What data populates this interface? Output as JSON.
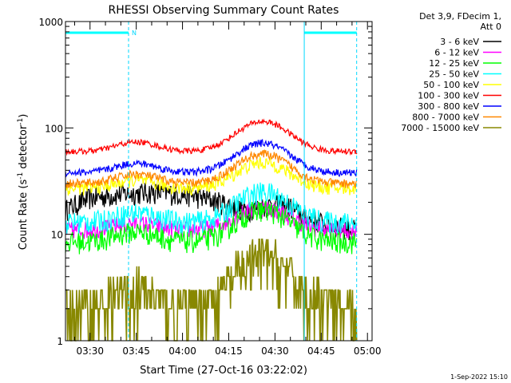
{
  "chart_data": {
    "type": "line",
    "title": "RHESSI Observing Summary Count Rates",
    "xlabel": "Start Time (27-Oct-16 03:22:02)",
    "ylabel": "Count Rate (s⁻¹ detector⁻¹)",
    "yscale": "log",
    "ylim": [
      1,
      1000
    ],
    "xlim": [
      "03:22:02",
      "04:56:30"
    ],
    "x_ticks": [
      "03:30",
      "03:45",
      "04:00",
      "04:15",
      "04:30",
      "04:45",
      "05:00"
    ],
    "y_ticks": [
      "1",
      "10",
      "100",
      "1000"
    ],
    "legend_header": [
      "Det 3,9, FDecim 1,",
      "Att 0"
    ],
    "legend_position": "right",
    "date_stamp": "1-Sep-2022 15:10",
    "night_marker_label": "N",
    "night_intervals": [
      [
        "03:22:02",
        "03:42:30"
      ],
      [
        "04:39:30",
        "04:56:30"
      ]
    ],
    "vertical_markers": [
      "03:22:02",
      "03:42:30",
      "04:39:30",
      "04:56:30"
    ],
    "series": [
      {
        "name": "3 - 6 keV",
        "color": "#000000",
        "baseline": 19,
        "peak": 20,
        "noise": 0.15,
        "x": [
          "03:22",
          "03:30",
          "03:40",
          "03:50",
          "04:00",
          "04:10",
          "04:20",
          "04:25",
          "04:30",
          "04:35",
          "04:40",
          "04:50",
          "04:56"
        ],
        "y": [
          17,
          22,
          24,
          25,
          24,
          21,
          17,
          18,
          19,
          18,
          14,
          12,
          11
        ]
      },
      {
        "name": "6 - 12 keV",
        "color": "#ff00ff",
        "baseline": 11,
        "peak": 18,
        "noise": 0.12
      },
      {
        "name": "12 - 25 keV",
        "color": "#00ff00",
        "baseline": 8.5,
        "peak": 17,
        "noise": 0.15
      },
      {
        "name": "25 - 50 keV",
        "color": "#00ffff",
        "baseline": 13,
        "peak": 25,
        "noise": 0.15
      },
      {
        "name": "50 - 100 keV",
        "color": "#ffff00",
        "baseline": 27,
        "peak": 47,
        "noise": 0.09
      },
      {
        "name": "100 - 300 keV",
        "color": "#ff0000",
        "baseline": 60,
        "peak": 115,
        "noise": 0.04
      },
      {
        "name": "300 - 800 keV",
        "color": "#0000ff",
        "baseline": 38,
        "peak": 72,
        "noise": 0.05
      },
      {
        "name": "800 - 7000 keV",
        "color": "#ff8800",
        "baseline": 30,
        "peak": 57,
        "noise": 0.06
      },
      {
        "name": "7000 - 15000 keV",
        "color": "#888800",
        "baseline": 2,
        "peak": 6,
        "noise": 0.5
      }
    ]
  }
}
